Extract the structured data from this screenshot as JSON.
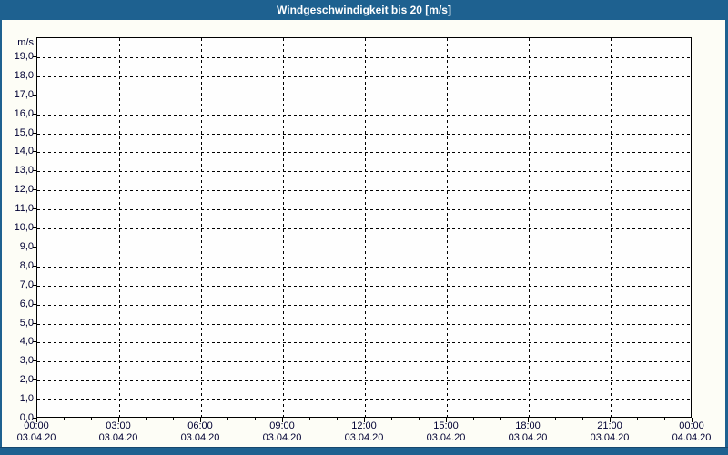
{
  "window": {
    "title": "Windgeschwindigkeit bis 20 [m/s]"
  },
  "colors": {
    "chrome_blue": "#1e6190",
    "chrome_border_dark": "#17486e",
    "page_bg": "#fdfdf6",
    "plot_bg": "#fefefe",
    "grid": "#000000",
    "label_text": "#000033",
    "title_text": "#ffffff"
  },
  "chart_data": {
    "type": "line",
    "title": "Windgeschwindigkeit bis 20 [m/s]",
    "ylabel": "m/s",
    "ylim": [
      0,
      20
    ],
    "y_tick_step": 1,
    "y_tick_labels_top_to_bottom": [
      "19,0",
      "18,0",
      "17,0",
      "16,0",
      "15,0",
      "14,0",
      "13,0",
      "12,0",
      "11,0",
      "10,0",
      "9,0",
      "8,0",
      "7,0",
      "6,0",
      "5,0",
      "4,0",
      "3,0",
      "2,0",
      "1,0",
      "0,0"
    ],
    "x_hours_range": [
      0,
      24
    ],
    "x_major_step_hours": 3,
    "x_minor_step_hours": 1,
    "x_tick_labels": [
      {
        "time": "00:00",
        "date": "03.04.20"
      },
      {
        "time": "03:00",
        "date": "03.04.20"
      },
      {
        "time": "06:00",
        "date": "03.04.20"
      },
      {
        "time": "09:00",
        "date": "03.04.20"
      },
      {
        "time": "12:00",
        "date": "03.04.20"
      },
      {
        "time": "15:00",
        "date": "03.04.20"
      },
      {
        "time": "18:00",
        "date": "03.04.20"
      },
      {
        "time": "21:00",
        "date": "03.04.20"
      },
      {
        "time": "00:00",
        "date": "04.04.20"
      }
    ],
    "grid": true,
    "legend": "none",
    "series": []
  }
}
